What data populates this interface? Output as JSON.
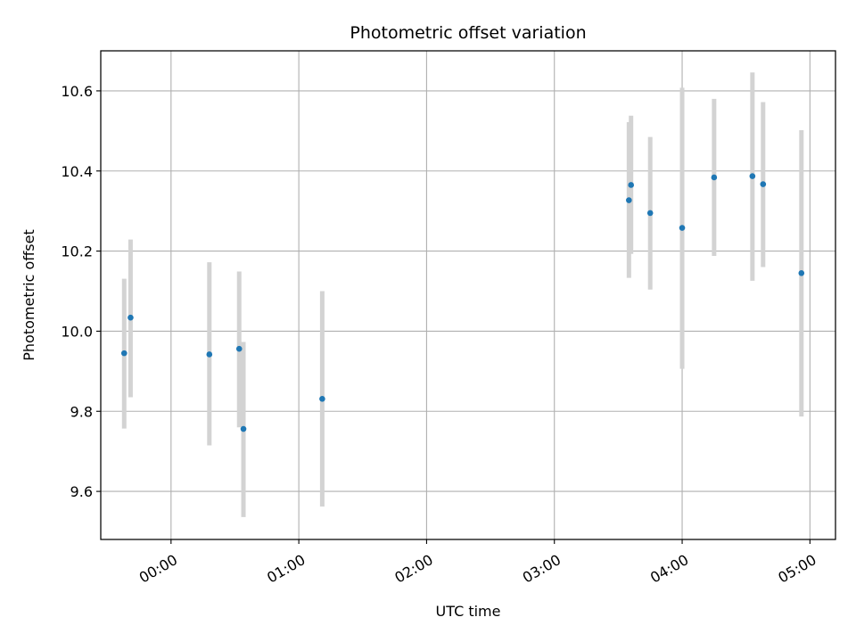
{
  "chart_data": {
    "type": "scatter",
    "title": "Photometric offset variation",
    "xlabel": "UTC time",
    "ylabel": "Photometric offset",
    "x_axis": "time",
    "xlim": [
      "23:27",
      "05:12"
    ],
    "ylim": [
      9.48,
      10.7
    ],
    "x_ticks": [
      "00:00",
      "01:00",
      "02:00",
      "03:00",
      "04:00",
      "05:00"
    ],
    "y_ticks": [
      "9.6",
      "9.8",
      "10.0",
      "10.2",
      "10.4",
      "10.6"
    ],
    "grid": true,
    "marker_color": "#1f77b4",
    "errorbar_color": "#d3d3d3",
    "points": [
      {
        "x": "23:38",
        "y": 9.945,
        "ymin": 9.757,
        "ymax": 10.131
      },
      {
        "x": "23:41",
        "y": 10.034,
        "ymin": 9.835,
        "ymax": 10.229
      },
      {
        "x": "00:18",
        "y": 9.942,
        "ymin": 9.715,
        "ymax": 10.172
      },
      {
        "x": "00:32",
        "y": 9.956,
        "ymin": 9.76,
        "ymax": 10.149
      },
      {
        "x": "00:34",
        "y": 9.756,
        "ymin": 9.536,
        "ymax": 9.973
      },
      {
        "x": "01:11",
        "y": 9.831,
        "ymin": 9.562,
        "ymax": 10.1
      },
      {
        "x": "03:35",
        "y": 10.327,
        "ymin": 10.133,
        "ymax": 10.522
      },
      {
        "x": "03:36",
        "y": 10.365,
        "ymin": 10.193,
        "ymax": 10.538
      },
      {
        "x": "03:45",
        "y": 10.295,
        "ymin": 10.104,
        "ymax": 10.485
      },
      {
        "x": "04:00",
        "y": 10.258,
        "ymin": 9.906,
        "ymax": 10.608
      },
      {
        "x": "04:15",
        "y": 10.384,
        "ymin": 10.188,
        "ymax": 10.58
      },
      {
        "x": "04:33",
        "y": 10.387,
        "ymin": 10.126,
        "ymax": 10.646
      },
      {
        "x": "04:38",
        "y": 10.367,
        "ymin": 10.16,
        "ymax": 10.572
      },
      {
        "x": "04:56",
        "y": 10.145,
        "ymin": 9.787,
        "ymax": 10.502
      }
    ]
  }
}
